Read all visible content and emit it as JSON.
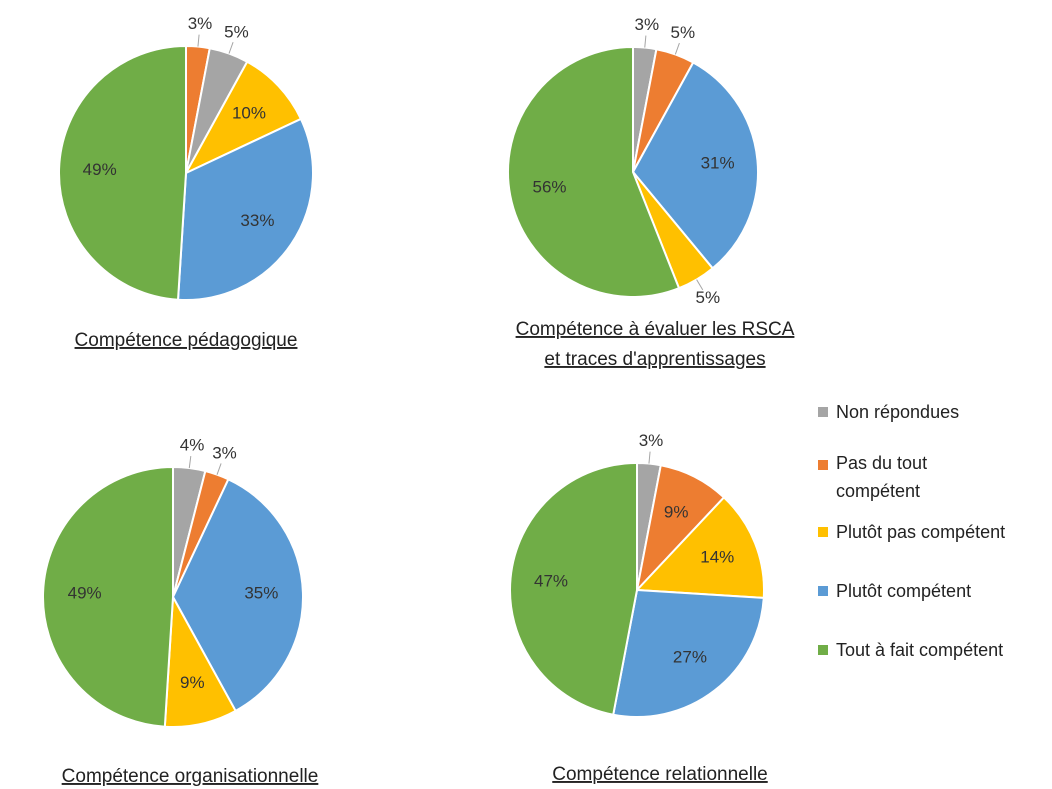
{
  "legend": {
    "categories": [
      "Non répondues",
      "Pas du tout compétent",
      "Plutôt pas compétent",
      "Plutôt compétent",
      "Tout à fait compétent"
    ],
    "colors": [
      "#a5a5a5",
      "#ed7d31",
      "#ffc000",
      "#5b9bd5",
      "#70ad47"
    ]
  },
  "chart_data": [
    {
      "type": "pie",
      "title": [
        "Compétence pédagogique"
      ],
      "categories": [
        "Pas du tout compétent",
        "Non répondues",
        "Plutôt pas compétent",
        "Plutôt compétent",
        "Tout à fait compétent"
      ],
      "values": [
        3,
        5,
        10,
        33,
        49
      ]
    },
    {
      "type": "pie",
      "title": [
        "Compétence à évaluer les RSCA",
        "et traces d'apprentissages"
      ],
      "categories": [
        "Non répondues",
        "Pas du tout compétent",
        "Plutôt compétent",
        "Plutôt pas compétent",
        "Tout à fait compétent"
      ],
      "values": [
        3,
        5,
        31,
        5,
        56
      ]
    },
    {
      "type": "pie",
      "title": [
        "Compétence organisationnelle"
      ],
      "categories": [
        "Non répondues",
        "Pas du tout compétent",
        "Plutôt compétent",
        "Plutôt pas compétent",
        "Tout à fait compétent"
      ],
      "values": [
        4,
        3,
        35,
        9,
        49
      ]
    },
    {
      "type": "pie",
      "title": [
        "Compétence relationnelle"
      ],
      "categories": [
        "Non répondues",
        "Pas du tout compétent",
        "Plutôt pas compétent",
        "Plutôt compétent",
        "Tout à fait compétent"
      ],
      "values": [
        3,
        9,
        14,
        27,
        47
      ]
    }
  ]
}
